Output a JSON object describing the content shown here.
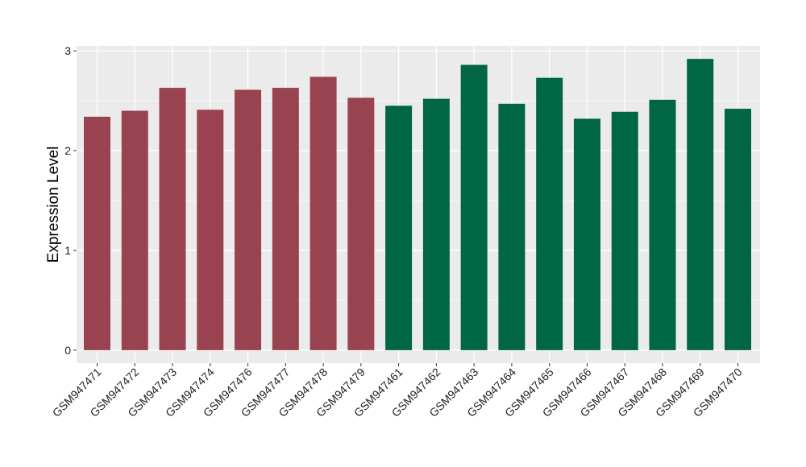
{
  "chart_data": {
    "type": "bar",
    "title": "",
    "xlabel": "",
    "ylabel": "Expression Level",
    "ylim": [
      -0.13,
      3.05
    ],
    "yticks": [
      0,
      1,
      2,
      3
    ],
    "grid": true,
    "categories": [
      "GSM947471",
      "GSM947472",
      "GSM947473",
      "GSM947474",
      "GSM947476",
      "GSM947477",
      "GSM947478",
      "GSM947479",
      "GSM947461",
      "GSM947462",
      "GSM947463",
      "GSM947464",
      "GSM947465",
      "GSM947466",
      "GSM947467",
      "GSM947468",
      "GSM947469",
      "GSM947470"
    ],
    "values": [
      2.34,
      2.4,
      2.63,
      2.41,
      2.61,
      2.63,
      2.74,
      2.53,
      2.45,
      2.52,
      2.86,
      2.47,
      2.73,
      2.32,
      2.39,
      2.51,
      2.92,
      2.42
    ],
    "group_colors": [
      "#9a4350",
      "#9a4350",
      "#9a4350",
      "#9a4350",
      "#9a4350",
      "#9a4350",
      "#9a4350",
      "#9a4350",
      "#006644",
      "#006644",
      "#006644",
      "#006644",
      "#006644",
      "#006644",
      "#006644",
      "#006644",
      "#006644",
      "#006644"
    ],
    "panel_background": "#ebebeb",
    "gridline_color": "#ffffff"
  }
}
